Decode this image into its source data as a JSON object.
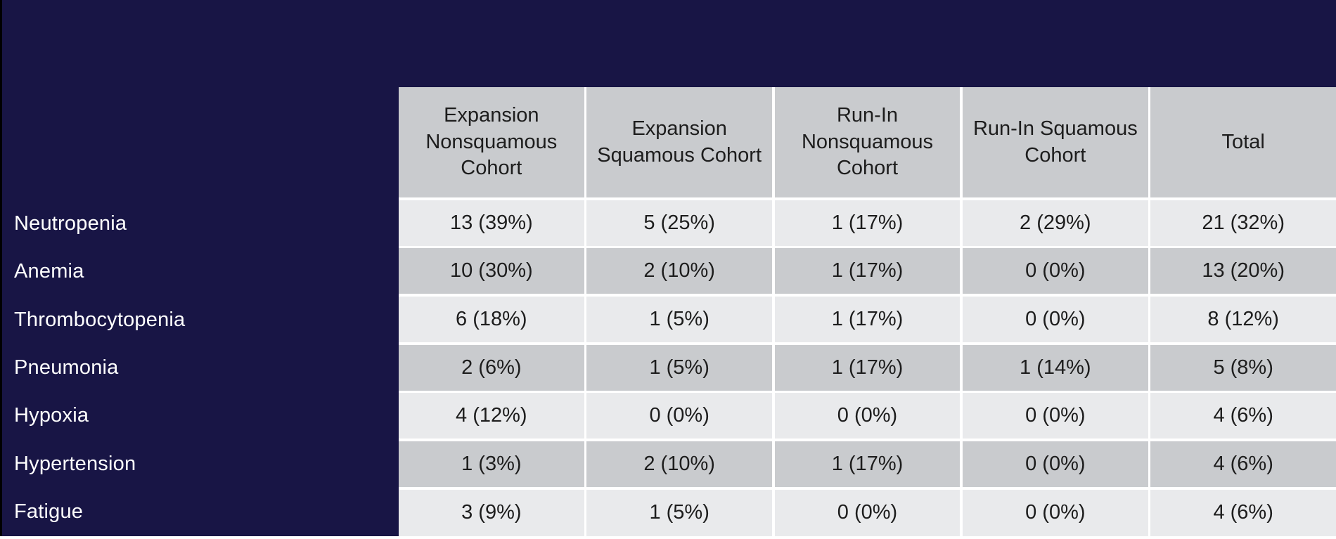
{
  "colors": {
    "navy": "#181545",
    "header_bg": "#c9cbce",
    "row_light": "#e9eaec",
    "row_dark": "#c9cbce",
    "gap_white": "#ffffff",
    "cell_text": "#1d1d1d",
    "label_text": "#ffffff",
    "edge_black": "#000000"
  },
  "table": {
    "headers": [
      "Expansion Nonsquamous Cohort",
      "Expansion Squamous Cohort",
      "Run-In Nonsquamous Cohort",
      "Run-In Squamous Cohort",
      "Total"
    ],
    "rows": [
      {
        "label": "Neutropenia",
        "values": [
          "13 (39%)",
          "5 (25%)",
          "1 (17%)",
          "2 (29%)",
          "21 (32%)"
        ]
      },
      {
        "label": "Anemia",
        "values": [
          "10 (30%)",
          "2 (10%)",
          "1 (17%)",
          "0 (0%)",
          "13 (20%)"
        ]
      },
      {
        "label": "Thrombocytopenia",
        "values": [
          "6 (18%)",
          "1 (5%)",
          "1 (17%)",
          "0 (0%)",
          "8 (12%)"
        ]
      },
      {
        "label": "Pneumonia",
        "values": [
          "2 (6%)",
          "1 (5%)",
          "1 (17%)",
          "1 (14%)",
          "5 (8%)"
        ]
      },
      {
        "label": "Hypoxia",
        "values": [
          "4 (12%)",
          "0 (0%)",
          "0 (0%)",
          "0 (0%)",
          "4 (6%)"
        ]
      },
      {
        "label": "Hypertension",
        "values": [
          "1 (3%)",
          "2 (10%)",
          "1 (17%)",
          "0 (0%)",
          "4 (6%)"
        ]
      },
      {
        "label": "Fatigue",
        "values": [
          "3 (9%)",
          "1 (5%)",
          "0 (0%)",
          "0 (0%)",
          "4 (6%)"
        ]
      }
    ]
  }
}
